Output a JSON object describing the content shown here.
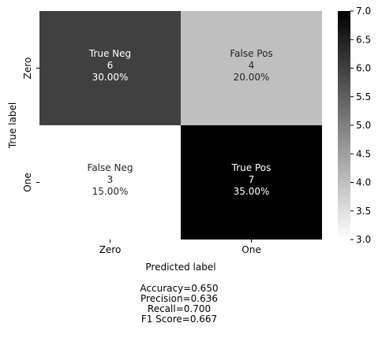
{
  "chart_data": {
    "type": "heatmap",
    "xlabel": "Predicted label",
    "ylabel": "True label",
    "x_categories": [
      "Zero",
      "One"
    ],
    "y_categories": [
      "Zero",
      "One"
    ],
    "cells": [
      [
        {
          "label": "True Neg",
          "count": "6",
          "percent": "30.00%",
          "value": 6
        },
        {
          "label": "False Pos",
          "count": "4",
          "percent": "20.00%",
          "value": 4
        }
      ],
      [
        {
          "label": "False Neg",
          "count": "3",
          "percent": "15.00%",
          "value": 3
        },
        {
          "label": "True Pos",
          "count": "7",
          "percent": "35.00%",
          "value": 7
        }
      ]
    ],
    "colorbar": {
      "range": [
        3.0,
        7.0
      ],
      "colormap": "binary (white to black)",
      "ticks": [
        "3.0",
        "3.5",
        "4.0",
        "4.5",
        "5.0",
        "5.5",
        "6.0",
        "6.5",
        "7.0"
      ]
    },
    "stats": [
      "Accuracy=0.650",
      "Precision=0.636",
      "Recall=0.700",
      "F1 Score=0.667"
    ]
  }
}
